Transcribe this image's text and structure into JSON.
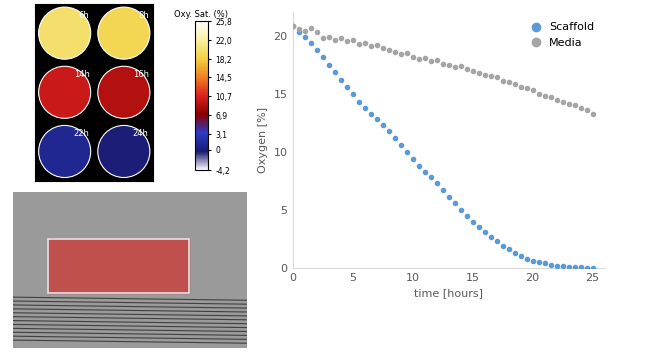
{
  "chart_data": [
    {
      "type": "map_panels",
      "panels": [
        "6h",
        "8h",
        "14h",
        "16h",
        "22h",
        "24h"
      ],
      "values": [
        20,
        19,
        10,
        9,
        1,
        0
      ],
      "colorbar": {
        "label": "Oxy. Sat. (%)",
        "range": [
          -4.2,
          25.8
        ],
        "ticks": [
          {
            "value": 25.8,
            "label": "25,8"
          },
          {
            "value": 22.0,
            "label": "22,0"
          },
          {
            "value": 18.2,
            "label": "18,2"
          },
          {
            "value": 14.5,
            "label": "14,5"
          },
          {
            "value": 10.7,
            "label": "10,7"
          },
          {
            "value": 6.9,
            "label": "6,9"
          },
          {
            "value": 3.1,
            "label": "3,1"
          },
          0,
          {
            "value": -4.2,
            "label": "-4,2"
          }
        ]
      }
    },
    {
      "type": "scatter",
      "x_label": "time [hours]",
      "y_label": "Oxygen [%]",
      "x": [
        0,
        0.5,
        1,
        1.5,
        2,
        2.5,
        3,
        3.5,
        4,
        4.5,
        5,
        5.5,
        6,
        6.5,
        7,
        7.5,
        8,
        8.5,
        9,
        9.5,
        10,
        10.5,
        11,
        11.5,
        12,
        12.5,
        13,
        13.5,
        14,
        14.5,
        15,
        15.5,
        16,
        16.5,
        17,
        17.5,
        18,
        18.5,
        19,
        19.5,
        20,
        20.5,
        21,
        21.5,
        22,
        22.5,
        23,
        23.5,
        24,
        24.5,
        25
      ],
      "series": [
        {
          "name": "Scaffold",
          "color": "#5b9bd5",
          "values": [
            20.8,
            20.3,
            19.9,
            19.4,
            18.8,
            18.2,
            17.5,
            16.9,
            16.2,
            15.6,
            15.0,
            14.3,
            13.8,
            13.3,
            12.8,
            12.3,
            11.8,
            11.2,
            10.6,
            10.0,
            9.4,
            8.8,
            8.3,
            7.8,
            7.3,
            6.7,
            6.1,
            5.6,
            5.0,
            4.5,
            4.0,
            3.5,
            3.1,
            2.7,
            2.3,
            1.9,
            1.6,
            1.3,
            1.0,
            0.8,
            0.6,
            0.5,
            0.4,
            0.3,
            0.2,
            0.2,
            0.1,
            0.1,
            0.1,
            0.0,
            0.0
          ]
        },
        {
          "name": "Media",
          "color": "#a5a5a5",
          "values": [
            20.8,
            20.6,
            20.4,
            20.7,
            20.3,
            19.8,
            19.9,
            19.6,
            19.8,
            19.5,
            19.6,
            19.3,
            19.4,
            19.1,
            19.2,
            18.9,
            18.8,
            18.6,
            18.4,
            18.5,
            18.2,
            18.0,
            18.1,
            17.8,
            17.9,
            17.6,
            17.5,
            17.3,
            17.4,
            17.1,
            17.0,
            16.8,
            16.6,
            16.5,
            16.4,
            16.1,
            16.0,
            15.8,
            15.6,
            15.5,
            15.3,
            15.0,
            14.8,
            14.7,
            14.5,
            14.3,
            14.1,
            14.0,
            13.8,
            13.6,
            13.3
          ]
        }
      ],
      "xlim": [
        0,
        26
      ],
      "xticks": [
        0,
        5,
        10,
        15,
        20,
        25
      ],
      "ylim": [
        0,
        22
      ],
      "yticks": [
        0,
        5,
        10,
        15,
        20
      ],
      "marker": "circle",
      "legend": "upper right",
      "grid": false
    }
  ]
}
